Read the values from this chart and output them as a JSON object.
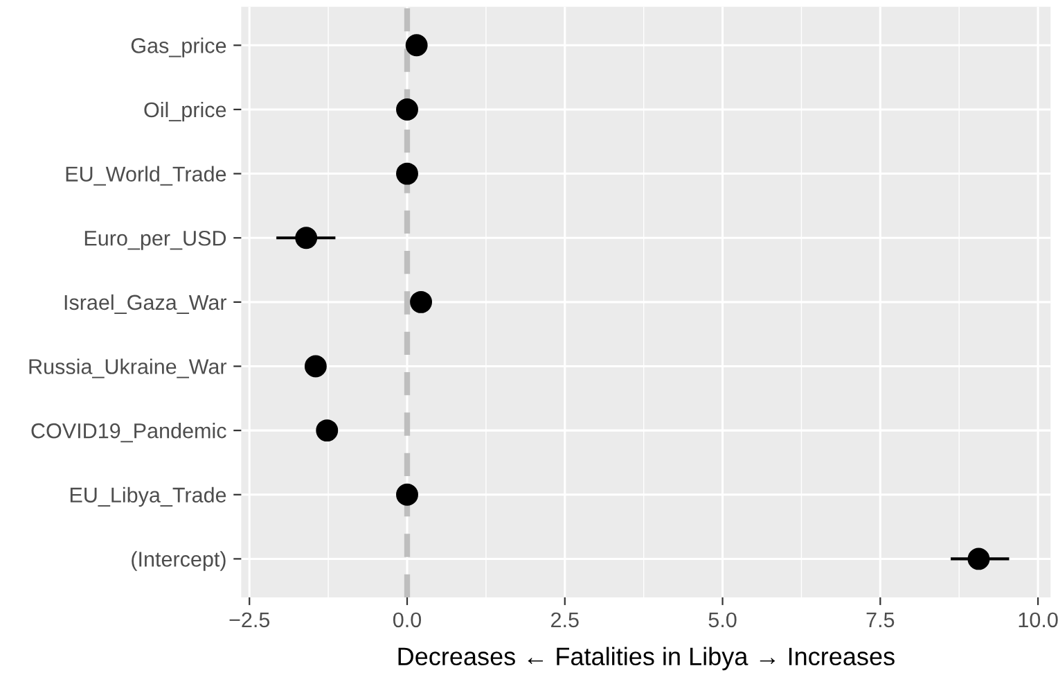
{
  "chart_data": {
    "type": "scatter",
    "orientation": "horizontal",
    "xlabel": "Decreases ← Fatalities in Libya → Increases",
    "categories": [
      "Gas_price",
      "Oil_price",
      "EU_World_Trade",
      "Euro_per_USD",
      "Israel_Gaza_War",
      "Russia_Ukraine_War",
      "COVID19_Pandemic",
      "EU_Libya_Trade",
      "(Intercept)"
    ],
    "values": [
      0.15,
      0.0,
      0.0,
      -1.6,
      0.22,
      -1.45,
      -1.27,
      0.0,
      9.06
    ],
    "errors": [
      null,
      null,
      null,
      [
        -2.05,
        -1.16
      ],
      null,
      null,
      null,
      null,
      [
        8.64,
        9.52
      ]
    ],
    "color": "#000000",
    "marker": "circle",
    "xlim": [
      -2.63,
      10.2
    ],
    "xticks": [
      {
        "value": -2.5,
        "label": "−2.5"
      },
      {
        "value": 0,
        "label": "0.0"
      },
      {
        "value": 2.5,
        "label": "2.5"
      },
      {
        "value": 5,
        "label": "5.0"
      },
      {
        "value": 7.5,
        "label": "7.5"
      },
      {
        "value": 10,
        "label": "10.0"
      }
    ],
    "ref_lines": [
      {
        "axis": "x",
        "value": 0,
        "label": null,
        "color": "#bebebe",
        "line_style": "dashed"
      }
    ],
    "grid": true
  }
}
